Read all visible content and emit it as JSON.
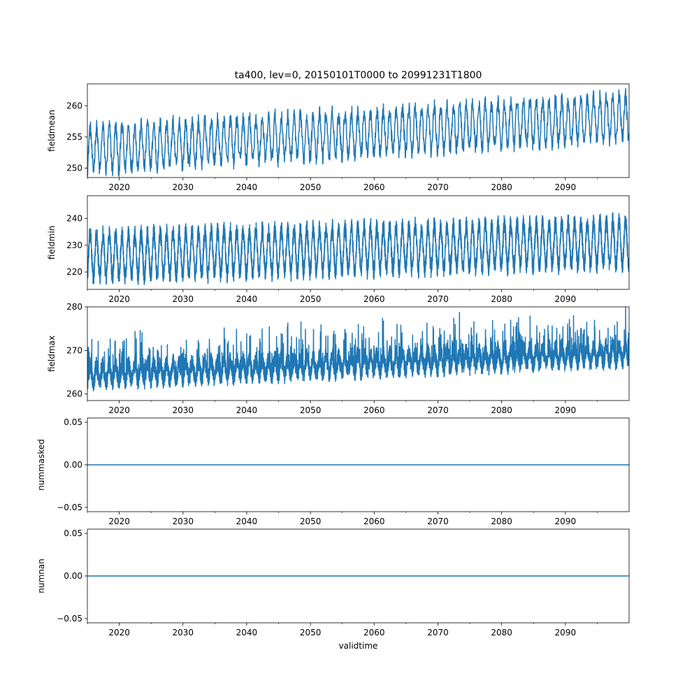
{
  "chart_data": [
    {
      "type": "line",
      "title": "ta400, lev=0, 20150101T0000 to 20991231T1800",
      "ylabel": "fieldmean",
      "xlabel": "",
      "xlim": [
        2015.0,
        2100.0
      ],
      "ylim": [
        248.5,
        263.5
      ],
      "x_ticks": [
        2020,
        2030,
        2040,
        2050,
        2060,
        2070,
        2080,
        2090
      ],
      "x_tick_labels": [
        "2020",
        "2030",
        "2040",
        "2050",
        "2060",
        "2070",
        "2080",
        "2090"
      ],
      "y_ticks": [
        250,
        255,
        260
      ],
      "y_tick_labels": [
        "250",
        "255",
        "260"
      ],
      "series": [
        {
          "name": "fieldmean",
          "color": "#1f77b4",
          "signal": {
            "kind": "seasonal",
            "start_x": 2015.0,
            "end_x": 2100.0,
            "base_start": 253.0,
            "base_end": 258.2,
            "amplitude": 3.4,
            "noise": 1.3,
            "points_per_year": 24
          }
        }
      ]
    },
    {
      "type": "line",
      "title": "",
      "ylabel": "fieldmin",
      "xlabel": "",
      "xlim": [
        2015.0,
        2100.0
      ],
      "ylim": [
        213.5,
        248.5
      ],
      "x_ticks": [
        2020,
        2030,
        2040,
        2050,
        2060,
        2070,
        2080,
        2090
      ],
      "x_tick_labels": [
        "2020",
        "2030",
        "2040",
        "2050",
        "2060",
        "2070",
        "2080",
        "2090"
      ],
      "y_ticks": [
        220,
        230,
        240
      ],
      "y_tick_labels": [
        "220",
        "230",
        "240"
      ],
      "series": [
        {
          "name": "fieldmin",
          "color": "#1f77b4",
          "signal": {
            "kind": "seasonal",
            "start_x": 2015.0,
            "end_x": 2100.0,
            "base_start": 226.0,
            "base_end": 231.0,
            "amplitude": 8.0,
            "noise": 3.5,
            "points_per_year": 60
          }
        }
      ]
    },
    {
      "type": "line",
      "title": "",
      "ylabel": "fieldmax",
      "xlabel": "",
      "xlim": [
        2015.0,
        2100.0
      ],
      "ylim": [
        258.5,
        280.0
      ],
      "x_ticks": [
        2020,
        2030,
        2040,
        2050,
        2060,
        2070,
        2080,
        2090
      ],
      "x_tick_labels": [
        "2020",
        "2030",
        "2040",
        "2050",
        "2060",
        "2070",
        "2080",
        "2090"
      ],
      "y_ticks": [
        260,
        270,
        280
      ],
      "y_tick_labels": [
        "260",
        "270",
        "280"
      ],
      "series": [
        {
          "name": "fieldmax",
          "color": "#1f77b4",
          "signal": {
            "kind": "spiky",
            "start_x": 2015.0,
            "end_x": 2100.0,
            "base_start": 264.5,
            "base_end": 269.5,
            "amplitude": 1.8,
            "noise": 2.2,
            "spike": 7.5,
            "points_per_year": 60
          }
        }
      ]
    },
    {
      "type": "line",
      "title": "",
      "ylabel": "nummasked",
      "xlabel": "",
      "xlim": [
        2015.0,
        2100.0
      ],
      "ylim": [
        -0.055,
        0.055
      ],
      "x_ticks": [
        2020,
        2030,
        2040,
        2050,
        2060,
        2070,
        2080,
        2090
      ],
      "x_tick_labels": [
        "2020",
        "2030",
        "2040",
        "2050",
        "2060",
        "2070",
        "2080",
        "2090"
      ],
      "y_ticks": [
        -0.05,
        0.0,
        0.05
      ],
      "y_tick_labels": [
        "−0.05",
        "0.00",
        "0.05"
      ],
      "series": [
        {
          "name": "nummasked",
          "color": "#1f77b4",
          "x": [
            2015.0,
            2100.0
          ],
          "y": [
            0.0,
            0.0
          ]
        }
      ]
    },
    {
      "type": "line",
      "title": "",
      "ylabel": "numnan",
      "xlabel": "validtime",
      "xlim": [
        2015.0,
        2100.0
      ],
      "ylim": [
        -0.055,
        0.055
      ],
      "x_ticks": [
        2020,
        2030,
        2040,
        2050,
        2060,
        2070,
        2080,
        2090
      ],
      "x_tick_labels": [
        "2020",
        "2030",
        "2040",
        "2050",
        "2060",
        "2070",
        "2080",
        "2090"
      ],
      "y_ticks": [
        -0.05,
        0.0,
        0.05
      ],
      "y_tick_labels": [
        "−0.05",
        "0.00",
        "0.05"
      ],
      "series": [
        {
          "name": "numnan",
          "color": "#1f77b4",
          "x": [
            2015.0,
            2100.0
          ],
          "y": [
            0.0,
            0.0
          ]
        }
      ]
    }
  ]
}
